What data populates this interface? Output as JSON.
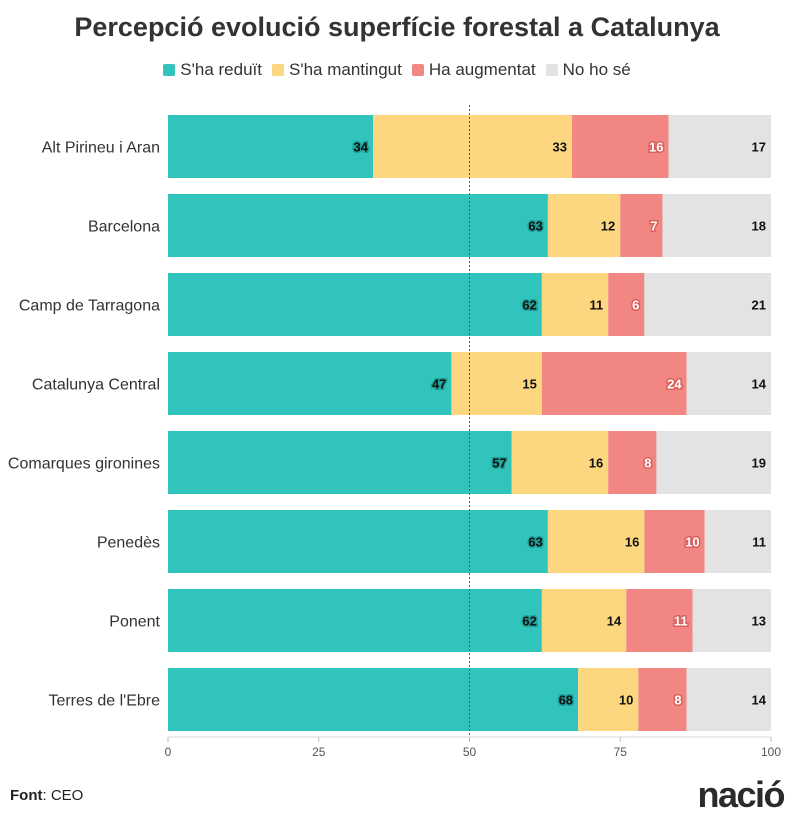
{
  "chart_data": {
    "type": "bar",
    "orientation": "horizontal",
    "stacked": true,
    "title": "Percepció evolució superfície forestal a Catalunya",
    "categories": [
      "Alt Pirineu i Aran",
      "Barcelona",
      "Camp de Tarragona",
      "Catalunya Central",
      "Comarques gironines",
      "Penedès",
      "Ponent",
      "Terres de l'Ebre"
    ],
    "series": [
      {
        "name": "S'ha reduït",
        "color": "#31c4bc",
        "values": [
          34,
          63,
          62,
          47,
          57,
          63,
          62,
          68
        ]
      },
      {
        "name": "S'ha mantingut",
        "color": "#fcd77f",
        "values": [
          33,
          12,
          11,
          15,
          16,
          16,
          14,
          10
        ]
      },
      {
        "name": "Ha augmentat",
        "color": "#f28683",
        "values": [
          16,
          7,
          6,
          24,
          8,
          10,
          11,
          8
        ]
      },
      {
        "name": "No ho sé",
        "color": "#e3e3e3",
        "values": [
          17,
          18,
          21,
          14,
          19,
          11,
          13,
          14
        ]
      }
    ],
    "xlim": [
      0,
      100
    ],
    "xticks": [
      0,
      25,
      50,
      75,
      100
    ],
    "reference_line": 50,
    "xlabel": "",
    "ylabel": "",
    "legend_position": "top"
  },
  "footer": {
    "source_label": "Font",
    "source_value": ": CEO",
    "logo": "nació"
  }
}
